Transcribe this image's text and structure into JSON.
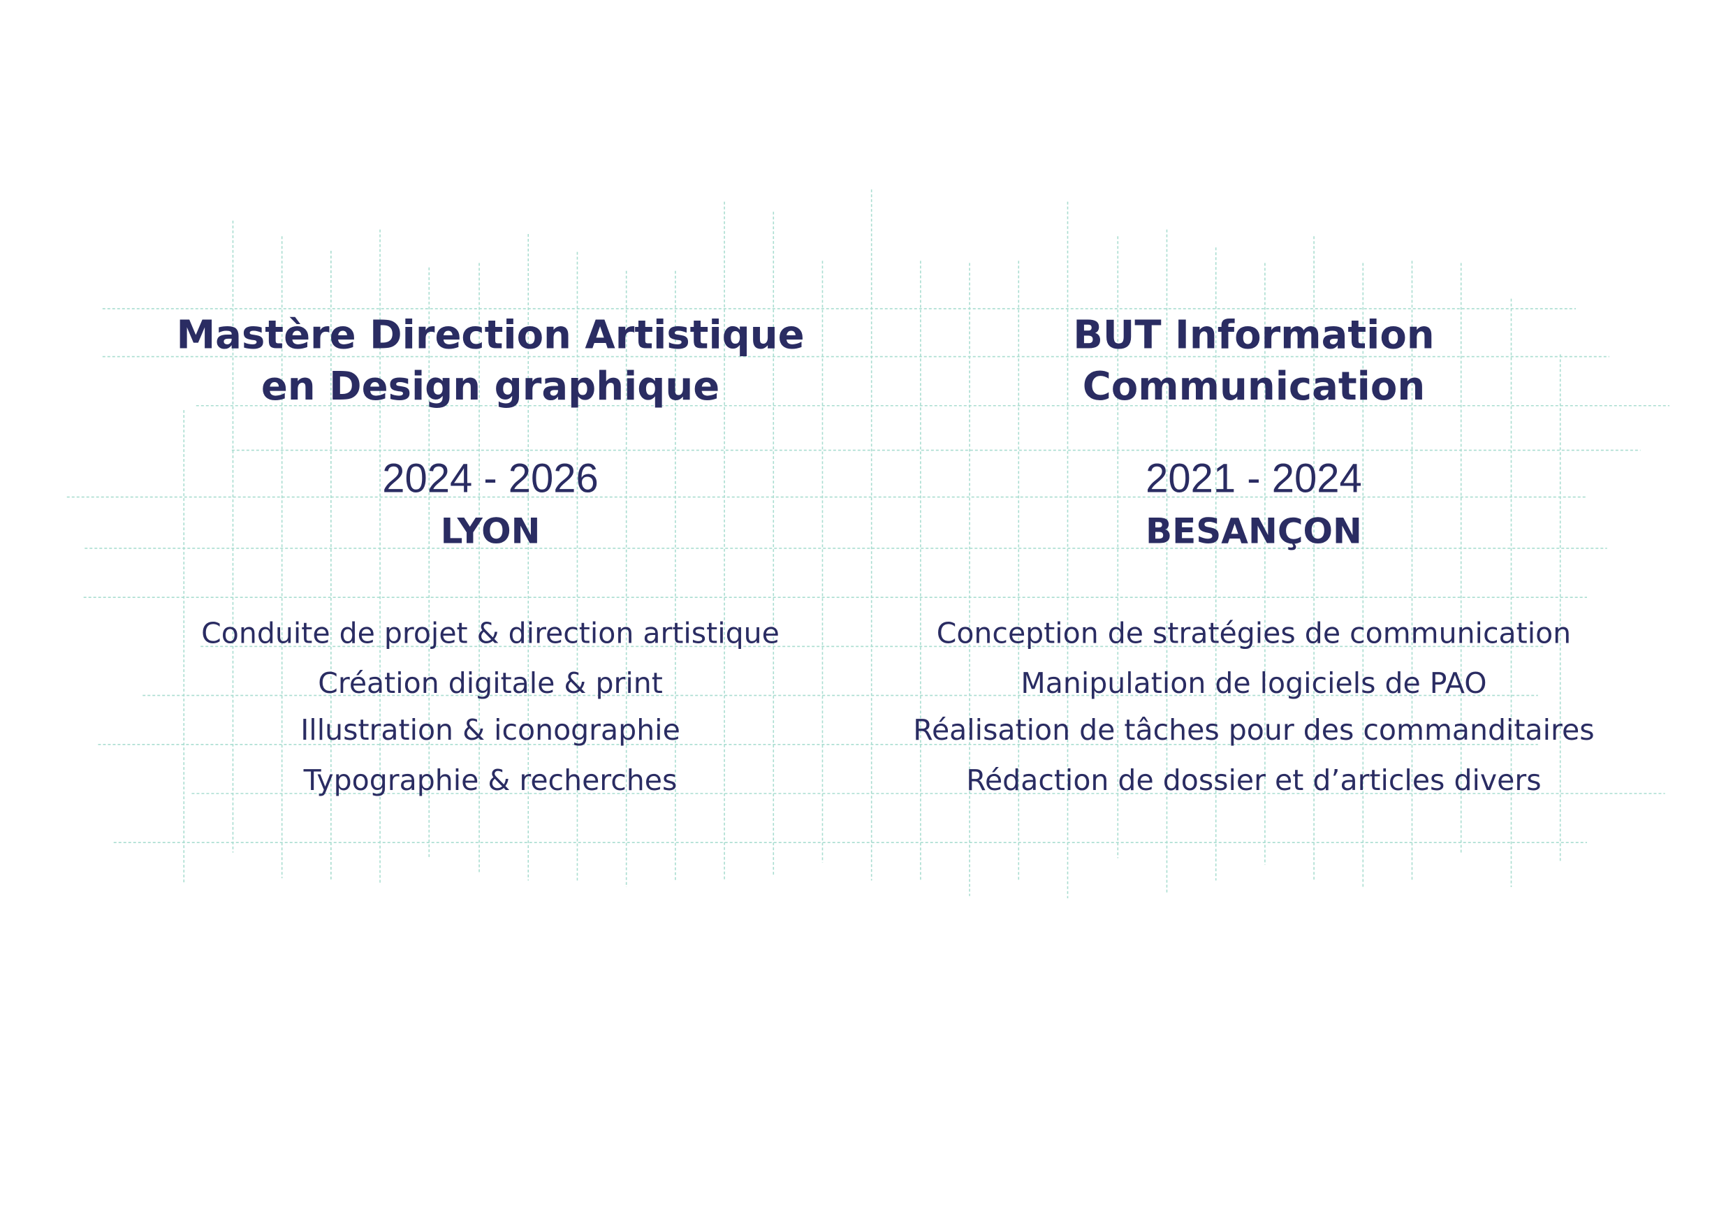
{
  "columns": [
    {
      "title": [
        "Mastère Direction Artistique",
        "en Design graphique"
      ],
      "years": "2024 - 2026",
      "city": "LYON",
      "items": [
        "Conduite de projet & direction artistique",
        "Création digitale & print",
        "Illustration & iconographie",
        "Typographie & recherches"
      ]
    },
    {
      "title": [
        "BUT Information",
        "Communication"
      ],
      "years": "2021 - 2024",
      "city": "BESANÇON",
      "items": [
        "Conception de stratégies de communication",
        "Manipulation de logiciels de PAO",
        "Réalisation de tâches pour des commanditaires",
        "Rédaction de dossier et d’articles divers"
      ]
    }
  ]
}
